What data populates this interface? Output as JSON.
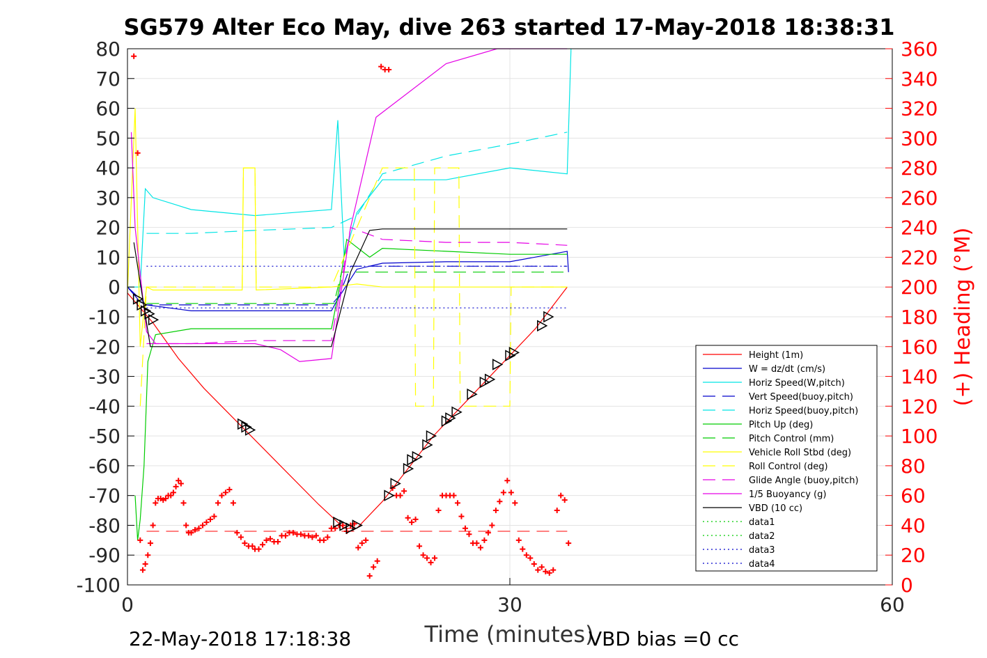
{
  "chart_data": {
    "type": "line",
    "title": "SG579 Alter Eco May, dive 263 started 17-May-2018 18:38:31",
    "xlabel": "Time (minutes)",
    "ylabel_right": "(+) Heading (°M)",
    "footer_left": "22-May-2018 17:18:38",
    "footer_right": "VBD bias =0 cc",
    "xlim": [
      0,
      60
    ],
    "ylim": [
      -100,
      80
    ],
    "y2lim": [
      0,
      360
    ],
    "x_ticks": [
      "0",
      "30",
      "60"
    ],
    "y_ticks": [
      "80",
      "70",
      "60",
      "50",
      "40",
      "30",
      "20",
      "10",
      "0",
      "-10",
      "-20",
      "-30",
      "-40",
      "-50",
      "-60",
      "-70",
      "-80",
      "-90",
      "-100"
    ],
    "y2_ticks": [
      "360",
      "340",
      "320",
      "300",
      "280",
      "260",
      "240",
      "220",
      "200",
      "180",
      "160",
      "140",
      "120",
      "100",
      "80",
      "60",
      "40",
      "20",
      "0"
    ],
    "grid": true,
    "legend_position": "lower-right",
    "series": [
      {
        "name": "Height (1m)",
        "color": "#ff0000",
        "style": "solid",
        "x": [
          0,
          2,
          4,
          6,
          9,
          12,
          15,
          17,
          18,
          20,
          22,
          24,
          26,
          28,
          30,
          32,
          34.5
        ],
        "y": [
          -2,
          -12,
          -24,
          -34,
          -47,
          -60,
          -73,
          -81,
          -81,
          -72,
          -61,
          -50,
          -41,
          -32,
          -23,
          -14,
          0
        ]
      },
      {
        "name": "W = dz/dt (cm/s)",
        "color": "#0000cc",
        "style": "solid",
        "x": [
          0,
          1,
          1.5,
          5,
          10,
          16,
          16.5,
          18,
          20,
          25,
          30,
          34.5,
          34.6
        ],
        "y": [
          0,
          -5,
          -6,
          -8,
          -8,
          -8,
          -4,
          6,
          8,
          8.5,
          8.5,
          12,
          5
        ]
      },
      {
        "name": "Horiz Speed(W,pitch)",
        "color": "#00e5e5",
        "style": "solid",
        "x": [
          0,
          1,
          1.4,
          2,
          5,
          10,
          16,
          16.5,
          17,
          18,
          20,
          25,
          30,
          34.5,
          34.8
        ],
        "y": [
          0,
          0,
          33,
          30,
          26,
          24,
          26,
          56,
          10,
          25,
          36,
          36,
          40,
          38,
          80
        ]
      },
      {
        "name": "Vert Speed(buoy,pitch)",
        "color": "#0000cc",
        "style": "dashed",
        "x": [
          0,
          1.5,
          16,
          16.6,
          17.5,
          34.5
        ],
        "y": [
          0,
          -6,
          -6,
          -3,
          7,
          7
        ]
      },
      {
        "name": "Horiz Speed(buoy,pitch)",
        "color": "#00e5e5",
        "style": "dashed",
        "x": [
          1.5,
          5,
          10,
          16,
          18,
          20,
          25,
          30,
          34.5
        ],
        "y": [
          18,
          18,
          19,
          20,
          24,
          38,
          44,
          48,
          52
        ]
      },
      {
        "name": "Pitch Up (deg)",
        "color": "#00cc00",
        "style": "solid",
        "x": [
          0.6,
          0.8,
          1.0,
          1.3,
          1.6,
          2.2,
          5,
          10,
          16,
          16.5,
          17.2,
          19,
          20,
          25,
          30,
          34.5
        ],
        "y": [
          -70,
          -85,
          -78,
          -60,
          -25,
          -16,
          -14,
          -14,
          -14,
          -3,
          16,
          10,
          13,
          12,
          11,
          11
        ]
      },
      {
        "name": "Pitch Control (mm)",
        "color": "#00cc00",
        "style": "dashed",
        "x": [
          1.5,
          16.2,
          16.8,
          34.5
        ],
        "y": [
          -5.5,
          -5.5,
          5,
          5
        ]
      },
      {
        "name": "Vehicle Roll Stbd (deg)",
        "color": "#ffff00",
        "style": "solid",
        "x": [
          0,
          0.6,
          1,
          1.5,
          2,
          5,
          9,
          9.1,
          10,
          10.1,
          16,
          18,
          20,
          25,
          30,
          34.5
        ],
        "y": [
          -2,
          60,
          -20,
          0,
          -1,
          -1,
          -1,
          40,
          40,
          -1,
          0,
          1,
          0,
          0,
          0,
          0
        ]
      },
      {
        "name": "Roll Control (deg)",
        "color": "#ffff00",
        "style": "dashed",
        "x": [
          1,
          1.5,
          2,
          9,
          9.1,
          10,
          10.1,
          16,
          20,
          22.5,
          22.6,
          24,
          24.1,
          26,
          26.1,
          30,
          30.1,
          34.5
        ],
        "y": [
          -40,
          0,
          0,
          0,
          40,
          40,
          0,
          0,
          40,
          40,
          -40,
          -40,
          40,
          40,
          -40,
          -40,
          0,
          0
        ]
      },
      {
        "name": "Glide Angle (buoy,pitch)",
        "color": "#e500e5",
        "style": "dashed",
        "x": [
          1.5,
          5,
          10,
          16,
          17.5,
          20,
          25,
          30,
          34.5
        ],
        "y": [
          -19,
          -19,
          -18,
          -18,
          20,
          16,
          15,
          15,
          14
        ]
      },
      {
        "name": "1/5 Buoyancy (g)",
        "color": "#e500e5",
        "style": "solid",
        "x": [
          0.3,
          0.6,
          1.5,
          2.2,
          5,
          10,
          12,
          13.5,
          16,
          17.5,
          19.5,
          25,
          29,
          34.5
        ],
        "y": [
          52,
          20,
          -15,
          -19,
          -19,
          -19,
          -21,
          -25,
          -24,
          20,
          57,
          75,
          80,
          80
        ]
      },
      {
        "name": "VBD (10 cc)",
        "color": "#000000",
        "style": "solid",
        "x": [
          0.5,
          1.5,
          1.8,
          5,
          10,
          16,
          17.5,
          19,
          20,
          34.5
        ],
        "y": [
          15,
          -12,
          -20,
          -20,
          -20,
          -20,
          5,
          19,
          19.5,
          19.5
        ]
      },
      {
        "name": "data1",
        "color": "#00cc00",
        "style": "dotted",
        "x": [],
        "y": []
      },
      {
        "name": "data2",
        "color": "#00cc00",
        "style": "dotted",
        "x": [],
        "y": []
      },
      {
        "name": "data3",
        "color": "#0000cc",
        "style": "dotted",
        "x": [
          1.5,
          34.5
        ],
        "y": [
          7,
          7
        ]
      },
      {
        "name": "data4",
        "color": "#0000cc",
        "style": "dotted",
        "x": [
          1.5,
          34.5
        ],
        "y": [
          -7,
          -7
        ]
      }
    ],
    "reference_lines": [
      {
        "color": "#ff0000",
        "style": "dashed",
        "y": -82,
        "x": [
          1.5,
          34.5
        ]
      }
    ],
    "heading_points": {
      "color": "#ff0000",
      "x": [
        0.5,
        0.8,
        1,
        1.2,
        1.4,
        1.6,
        1.8,
        2,
        2.2,
        2.4,
        2.6,
        2.8,
        3,
        3.2,
        3.4,
        3.6,
        3.8,
        4,
        4.2,
        4.4,
        4.6,
        4.8,
        5,
        5.3,
        5.6,
        5.9,
        6.2,
        6.5,
        6.8,
        7.1,
        7.4,
        7.7,
        8,
        8.3,
        8.6,
        8.9,
        9.2,
        9.5,
        9.8,
        10,
        10.3,
        10.6,
        10.9,
        11.2,
        11.5,
        11.8,
        12.1,
        12.4,
        12.7,
        13,
        13.3,
        13.6,
        13.9,
        14.2,
        14.5,
        14.8,
        15.1,
        15.4,
        15.7,
        16,
        16.3,
        16.6,
        16.9,
        17.2,
        17.5,
        17.8,
        18.1,
        18.4,
        18.7,
        19,
        19.3,
        19.6,
        19.9,
        20.2,
        20.5,
        20.8,
        21.1,
        21.4,
        21.7,
        22,
        22.3,
        22.6,
        22.9,
        23.2,
        23.5,
        23.8,
        24.1,
        24.4,
        24.7,
        25,
        25.3,
        25.6,
        25.9,
        26.2,
        26.5,
        26.8,
        27.1,
        27.4,
        27.7,
        28,
        28.3,
        28.6,
        28.9,
        29.2,
        29.5,
        29.8,
        30.1,
        30.4,
        30.7,
        31,
        31.3,
        31.6,
        31.9,
        32.2,
        32.5,
        32.8,
        33.1,
        33.4,
        33.7,
        34,
        34.3,
        34.6
      ],
      "y": [
        355,
        290,
        30,
        10,
        14,
        20,
        28,
        40,
        55,
        58,
        58,
        57,
        58,
        60,
        60,
        62,
        66,
        70,
        68,
        55,
        40,
        35,
        35,
        37,
        38,
        40,
        42,
        44,
        46,
        55,
        60,
        62,
        64,
        55,
        35,
        32,
        28,
        26,
        26,
        24,
        24,
        27,
        30,
        31,
        29,
        29,
        33,
        33,
        35,
        35,
        34,
        34,
        33,
        33,
        32,
        33,
        30,
        30,
        32,
        38,
        38,
        40,
        40,
        36,
        40,
        41,
        25,
        28,
        30,
        6,
        12,
        16,
        348,
        346,
        346,
        65,
        60,
        60,
        63,
        45,
        42,
        44,
        26,
        20,
        18,
        15,
        18,
        50,
        60,
        60,
        60,
        60,
        55,
        46,
        38,
        34,
        28,
        28,
        25,
        30,
        35,
        40,
        50,
        56,
        62,
        70,
        62,
        55,
        30,
        24,
        20,
        18,
        14,
        10,
        12,
        9,
        8,
        10,
        50,
        60,
        57,
        28
      ]
    },
    "profile_markers": {
      "color": "#000000",
      "x": [
        0.8,
        1.1,
        1.4,
        1.7,
        2,
        9,
        9.3,
        9.6,
        16.5,
        17,
        17.5,
        18,
        20.5,
        21,
        22,
        22.3,
        22.7,
        23.5,
        23.8,
        25,
        25.3,
        25.8,
        27,
        28,
        28.4,
        29,
        30,
        30.3,
        32.5,
        33
      ],
      "y": [
        -4,
        -6,
        -8,
        -9,
        -11,
        -46,
        -47,
        -48,
        -79,
        -80,
        -81,
        -80,
        -70,
        -66,
        -61,
        -58,
        -57,
        -53,
        -50,
        -45,
        -44,
        -42,
        -36,
        -32,
        -31,
        -26,
        -23,
        -22,
        -13,
        -10
      ]
    }
  }
}
